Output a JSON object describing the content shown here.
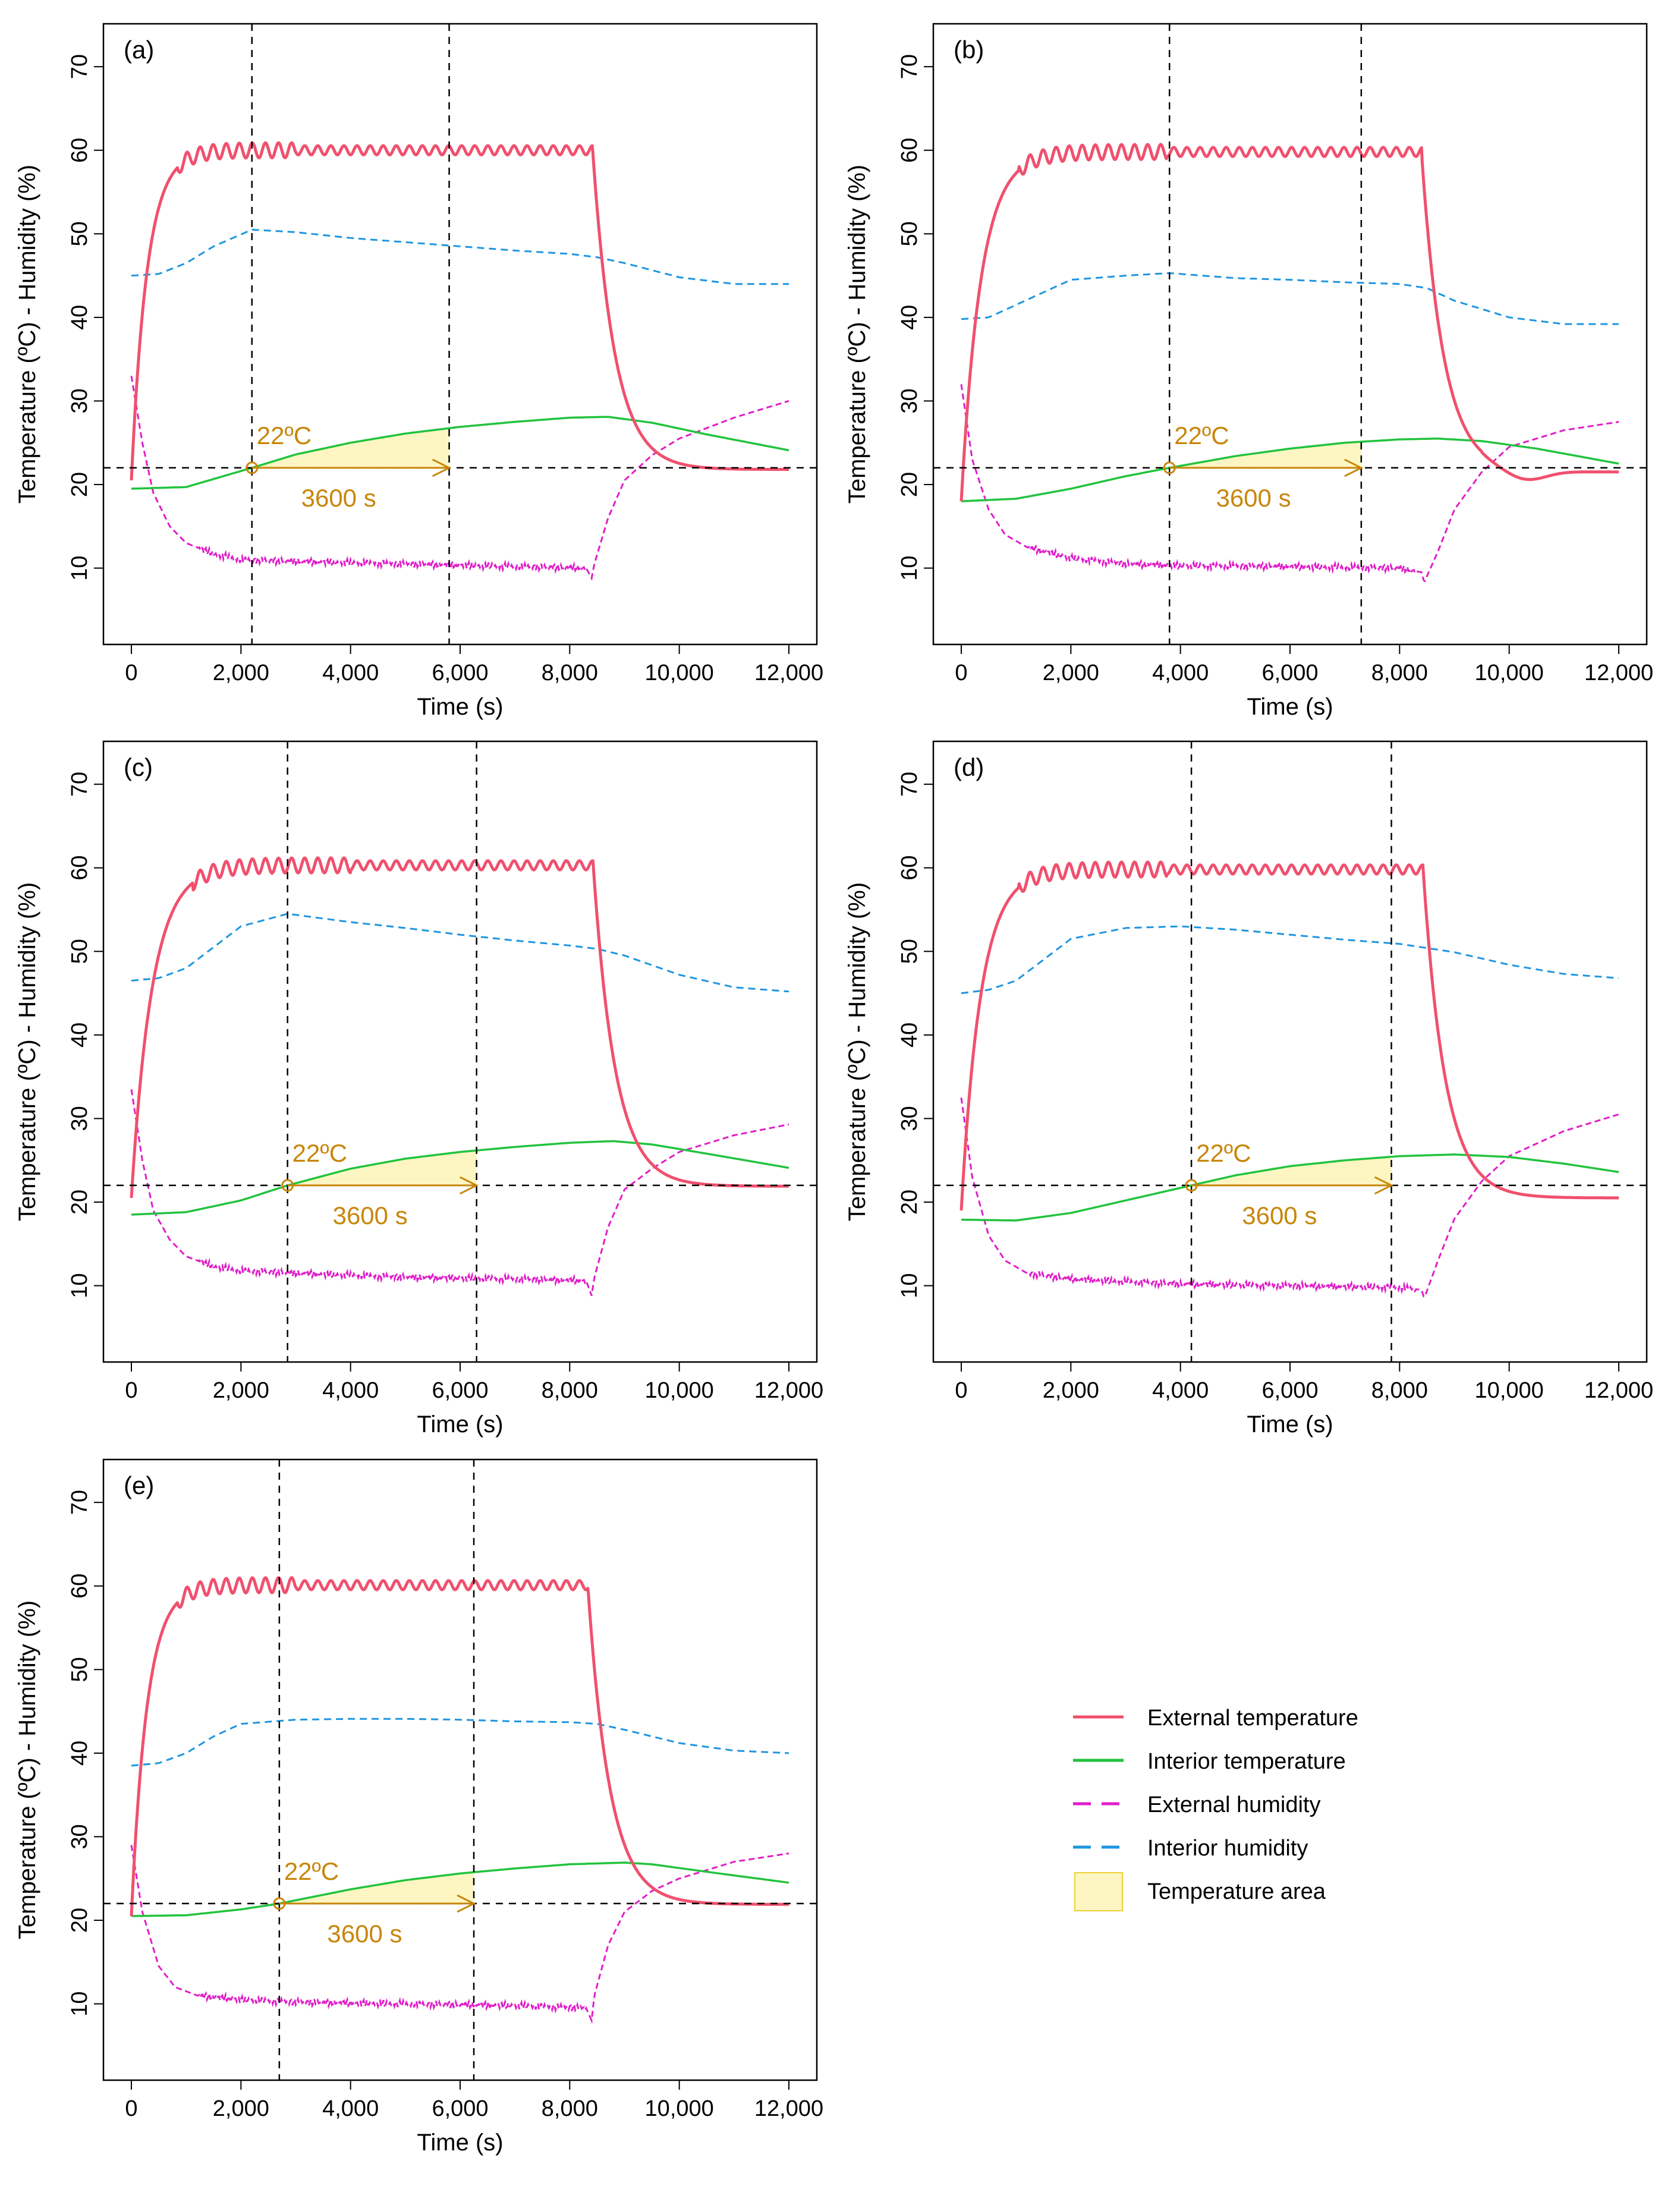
{
  "figure": {
    "colors": {
      "external_temperature": "#f0506e",
      "interior_temperature": "#22c33e",
      "external_humidity": "#e01ec8",
      "interior_humidity": "#1e96e0",
      "temperature_area_fill": "#fdf6c3",
      "temperature_area_border": "#f0d030",
      "annotation": "#c8860a",
      "reference_lines": "#000000"
    },
    "legend": {
      "placement": "bottom-right",
      "items": [
        {
          "label": "External temperature",
          "key": "external_temperature",
          "style": "solid"
        },
        {
          "label": "Interior temperature",
          "key": "interior_temperature",
          "style": "solid"
        },
        {
          "label": "External humidity",
          "key": "external_humidity",
          "style": "dashed"
        },
        {
          "label": "Interior humidity",
          "key": "interior_humidity",
          "style": "dashed"
        },
        {
          "label": "Temperature area",
          "key": "temperature_area",
          "style": "area"
        }
      ]
    }
  },
  "chart_data": [
    {
      "type": "line",
      "panel": "(a)",
      "xlabel": "Time (s)",
      "ylabel": "Temperature (ºC) - Humidity (%)",
      "xlim": [
        0,
        12000
      ],
      "ylim": [
        3,
        73
      ],
      "xticks": [
        "0",
        "2,000",
        "4,000",
        "6,000",
        "8,000",
        "10,000",
        "12,000"
      ],
      "yticks": [
        "10",
        "20",
        "30",
        "40",
        "50",
        "60",
        "70"
      ],
      "threshold": {
        "y": 22,
        "label": "22ºC"
      },
      "vlines": [
        2200,
        5800
      ],
      "duration_label": "3600 s",
      "ext_temp": {
        "start": 20.5,
        "plateau": 60,
        "rise_end": 1200,
        "drop_start": 8420,
        "drop_end": 9500,
        "end_value": 21.8,
        "at_drop_end": 29
      },
      "series": [
        {
          "name": "Interior temperature",
          "x": [
            0,
            1000,
            2200,
            3000,
            4000,
            5000,
            6000,
            7000,
            8000,
            8700,
            9500,
            10500,
            12000
          ],
          "values": [
            19.5,
            19.7,
            22,
            23.6,
            25.0,
            26.1,
            26.9,
            27.5,
            28.0,
            28.1,
            27.4,
            26.0,
            24.1
          ]
        },
        {
          "name": "External humidity",
          "x": [
            0,
            200,
            400,
            700,
            1000,
            1500,
            2000,
            3000,
            5000,
            7000,
            8300,
            8400,
            8450,
            8700,
            9000,
            9500,
            10000,
            11000,
            12000
          ],
          "values": [
            33,
            25,
            19,
            15,
            13,
            11.7,
            11,
            10.8,
            10.5,
            10.2,
            10.0,
            8.8,
            10.5,
            16,
            20.5,
            23.5,
            25.5,
            28,
            30
          ]
        },
        {
          "name": "Interior humidity",
          "x": [
            0,
            500,
            1000,
            1500,
            2200,
            3000,
            4000,
            5000,
            6000,
            7000,
            8000,
            8500,
            9000,
            10000,
            11000,
            12000
          ],
          "values": [
            45,
            45.2,
            46.5,
            48.5,
            50.5,
            50.2,
            49.5,
            49.0,
            48.5,
            48.0,
            47.6,
            47.2,
            46.5,
            44.8,
            44.0,
            44.0
          ]
        }
      ]
    },
    {
      "type": "line",
      "panel": "(b)",
      "xlabel": "Time (s)",
      "ylabel": "Temperature (ºC) - Humidity (%)",
      "xlim": [
        0,
        12000
      ],
      "ylim": [
        3,
        73
      ],
      "xticks": [
        "0",
        "2,000",
        "4,000",
        "6,000",
        "8,000",
        "10,000",
        "12,000"
      ],
      "yticks": [
        "10",
        "20",
        "30",
        "40",
        "50",
        "60",
        "70"
      ],
      "threshold": {
        "y": 22,
        "label": "22ºC"
      },
      "vlines": [
        3800,
        7300
      ],
      "duration_label": "3600 s",
      "ext_temp": {
        "start": 18,
        "plateau": 59.8,
        "rise_end": 1500,
        "drop_start": 8400,
        "drop_end": 9700,
        "end_value": 21.5,
        "at_drop_end": 23,
        "dip": {
          "x": 10300,
          "y": 20.7
        }
      },
      "series": [
        {
          "name": "Interior temperature",
          "x": [
            0,
            1000,
            2000,
            3000,
            3800,
            5000,
            6000,
            7000,
            8000,
            8700,
            9500,
            10500,
            12000
          ],
          "values": [
            18,
            18.3,
            19.5,
            21,
            22,
            23.4,
            24.3,
            25.0,
            25.4,
            25.5,
            25.2,
            24.3,
            22.5
          ]
        },
        {
          "name": "External humidity",
          "x": [
            0,
            200,
            500,
            800,
            1200,
            2000,
            3000,
            4000,
            6000,
            8000,
            8400,
            8450,
            8700,
            9000,
            9500,
            10000,
            11000,
            12000
          ],
          "values": [
            32,
            23,
            17,
            14,
            12.5,
            11.2,
            10.5,
            10.3,
            10.2,
            10.0,
            9.5,
            8.3,
            12,
            17,
            21.5,
            24.5,
            26.5,
            27.5
          ]
        },
        {
          "name": "Interior humidity",
          "x": [
            0,
            500,
            1000,
            2000,
            3000,
            3800,
            5000,
            6000,
            7000,
            8000,
            8500,
            9000,
            10000,
            11000,
            12000
          ],
          "values": [
            39.8,
            40,
            41.5,
            44.5,
            45,
            45.3,
            44.7,
            44.5,
            44.2,
            44.0,
            43.5,
            42,
            40,
            39.2,
            39.2
          ]
        }
      ]
    },
    {
      "type": "line",
      "panel": "(c)",
      "xlabel": "Time (s)",
      "ylabel": "Temperature (ºC) - Humidity (%)",
      "xlim": [
        0,
        12000
      ],
      "ylim": [
        3,
        73
      ],
      "xticks": [
        "0",
        "2,000",
        "4,000",
        "6,000",
        "8,000",
        "10,000",
        "12,000"
      ],
      "yticks": [
        "10",
        "20",
        "30",
        "40",
        "50",
        "60",
        "70"
      ],
      "threshold": {
        "y": 22,
        "label": "22ºC"
      },
      "vlines": [
        2850,
        6300
      ],
      "duration_label": "3600 s",
      "ext_temp": {
        "start": 20.5,
        "plateau": 60.3,
        "rise_end": 1600,
        "drop_start": 8430,
        "drop_end": 9700,
        "end_value": 21.9,
        "at_drop_end": 25
      },
      "series": [
        {
          "name": "Interior temperature",
          "x": [
            0,
            1000,
            2000,
            2850,
            4000,
            5000,
            6000,
            7000,
            8000,
            8800,
            9500,
            10500,
            12000
          ],
          "values": [
            18.5,
            18.8,
            20.2,
            22,
            24.0,
            25.2,
            26.0,
            26.6,
            27.1,
            27.3,
            26.9,
            25.8,
            24.1
          ]
        },
        {
          "name": "External humidity",
          "x": [
            0,
            200,
            400,
            700,
            1000,
            1500,
            2000,
            3000,
            5000,
            7000,
            8300,
            8400,
            8450,
            8700,
            9000,
            9500,
            10000,
            11000,
            12000
          ],
          "values": [
            33.5,
            25,
            19,
            15.5,
            13.5,
            12.3,
            11.8,
            11.5,
            11.0,
            10.8,
            10.6,
            8.8,
            11,
            17,
            21.5,
            24,
            26,
            28,
            29.3
          ]
        },
        {
          "name": "Interior humidity",
          "x": [
            0,
            500,
            1000,
            1500,
            2000,
            2850,
            4000,
            5000,
            6000,
            7000,
            8000,
            8500,
            9000,
            10000,
            11000,
            12000
          ],
          "values": [
            46.5,
            46.8,
            48,
            50.5,
            53,
            54.5,
            53.5,
            52.8,
            52.0,
            51.3,
            50.7,
            50.3,
            49.5,
            47.2,
            45.7,
            45.2
          ]
        }
      ]
    },
    {
      "type": "line",
      "panel": "(d)",
      "xlabel": "Time (s)",
      "ylabel": "Temperature (ºC) - Humidity (%)",
      "xlim": [
        0,
        12000
      ],
      "ylim": [
        3,
        73
      ],
      "xticks": [
        "0",
        "2,000",
        "4,000",
        "6,000",
        "8,000",
        "10,000",
        "12,000"
      ],
      "yticks": [
        "10",
        "20",
        "30",
        "40",
        "50",
        "60",
        "70"
      ],
      "threshold": {
        "y": 22,
        "label": "22ºC"
      },
      "vlines": [
        4200,
        7850
      ],
      "duration_label": "3600 s",
      "ext_temp": {
        "start": 19,
        "plateau": 59.8,
        "rise_end": 1500,
        "drop_start": 8430,
        "drop_end": 9600,
        "end_value": 20.5,
        "at_drop_end": 25
      },
      "series": [
        {
          "name": "Interior temperature",
          "x": [
            0,
            1000,
            2000,
            3000,
            4200,
            5000,
            6000,
            7000,
            8000,
            9000,
            10000,
            11000,
            12000
          ],
          "values": [
            17.9,
            17.8,
            18.7,
            20.2,
            22,
            23.2,
            24.3,
            25.0,
            25.5,
            25.7,
            25.4,
            24.6,
            23.6
          ]
        },
        {
          "name": "External humidity",
          "x": [
            0,
            200,
            500,
            800,
            1200,
            2000,
            3000,
            4000,
            6000,
            8000,
            8400,
            8450,
            8700,
            9000,
            9500,
            10000,
            11000,
            12000
          ],
          "values": [
            32.5,
            23,
            16,
            13,
            11.5,
            10.8,
            10.5,
            10.2,
            10.0,
            9.8,
            9.5,
            8.5,
            13,
            18,
            22.5,
            25.5,
            28.5,
            30.5
          ]
        },
        {
          "name": "Interior humidity",
          "x": [
            0,
            500,
            1000,
            1500,
            2000,
            3000,
            4000,
            5000,
            6000,
            7000,
            8000,
            9000,
            10000,
            11000,
            12000
          ],
          "values": [
            45,
            45.4,
            46.5,
            49,
            51.5,
            52.8,
            53,
            52.6,
            52.0,
            51.4,
            50.9,
            49.9,
            48.4,
            47.3,
            46.8
          ]
        }
      ]
    },
    {
      "type": "line",
      "panel": "(e)",
      "xlabel": "Time (s)",
      "ylabel": "Temperature (ºC) - Humidity (%)",
      "xlim": [
        0,
        12000
      ],
      "ylim": [
        3,
        73
      ],
      "xticks": [
        "0",
        "2,000",
        "4,000",
        "6,000",
        "8,000",
        "10,000",
        "12,000"
      ],
      "yticks": [
        "10",
        "20",
        "30",
        "40",
        "50",
        "60",
        "70"
      ],
      "threshold": {
        "y": 22,
        "label": "22ºC"
      },
      "vlines": [
        2700,
        6250
      ],
      "duration_label": "3600 s",
      "ext_temp": {
        "start": 20.5,
        "plateau": 60.1,
        "rise_end": 1200,
        "drop_start": 8330,
        "drop_end": 9500,
        "end_value": 21.9,
        "at_drop_end": 27
      },
      "series": [
        {
          "name": "Interior temperature",
          "x": [
            0,
            1000,
            2000,
            2700,
            4000,
            5000,
            6000,
            7000,
            8000,
            9000,
            9500,
            10500,
            12000
          ],
          "values": [
            20.5,
            20.6,
            21.3,
            22,
            23.7,
            24.8,
            25.6,
            26.2,
            26.7,
            26.9,
            26.7,
            25.8,
            24.5
          ]
        },
        {
          "name": "External humidity",
          "x": [
            0,
            200,
            500,
            800,
            1200,
            2000,
            3000,
            5000,
            7000,
            8300,
            8400,
            8450,
            8700,
            9000,
            9500,
            10000,
            11000,
            12000
          ],
          "values": [
            29,
            21,
            14.5,
            12,
            11,
            10.5,
            10.2,
            10.0,
            9.8,
            9.5,
            8.0,
            11,
            17,
            21,
            23.5,
            25,
            27,
            28
          ]
        },
        {
          "name": "Interior humidity",
          "x": [
            0,
            500,
            1000,
            1500,
            2000,
            3000,
            4000,
            5000,
            6000,
            7000,
            8000,
            8500,
            9000,
            10000,
            11000,
            12000
          ],
          "values": [
            38.5,
            38.8,
            40,
            42,
            43.5,
            44.0,
            44.1,
            44.1,
            44.0,
            43.8,
            43.7,
            43.5,
            42.8,
            41.2,
            40.3,
            40.0
          ]
        }
      ]
    }
  ]
}
